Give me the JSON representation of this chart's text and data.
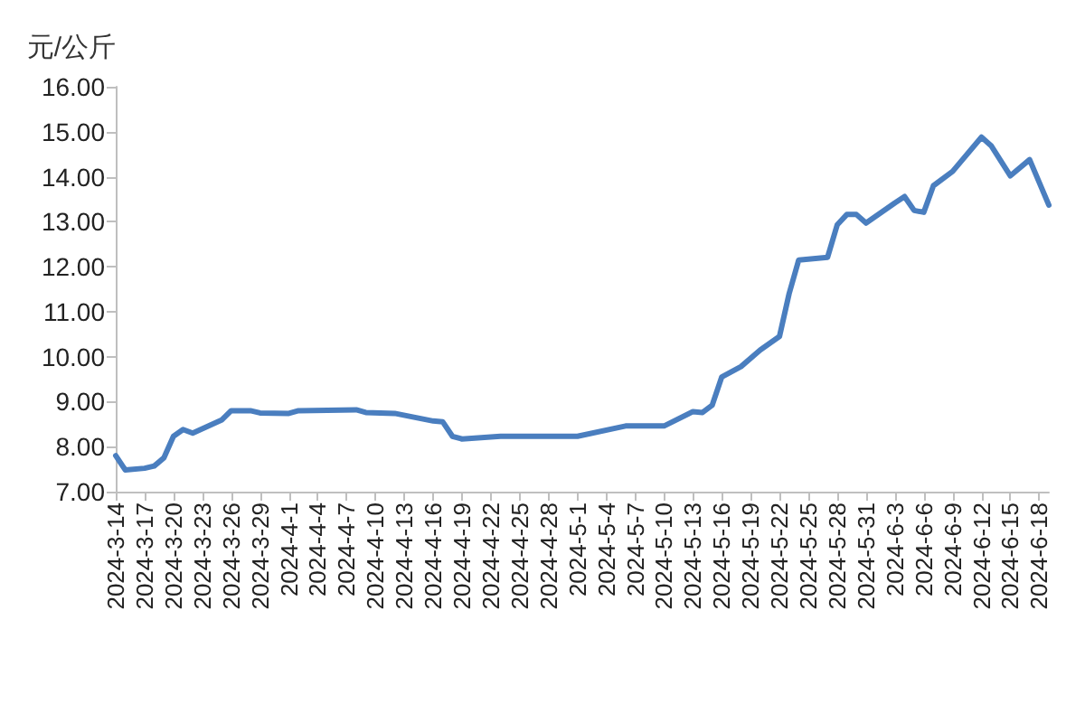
{
  "chart_data": {
    "type": "line",
    "ylabel": "元/公斤",
    "x": [
      "2024-03-14",
      "2024-03-15",
      "2024-03-17",
      "2024-03-18",
      "2024-03-19",
      "2024-03-20",
      "2024-03-21",
      "2024-03-22",
      "2024-03-25",
      "2024-03-26",
      "2024-03-28",
      "2024-03-29",
      "2024-04-01",
      "2024-04-02",
      "2024-04-08",
      "2024-04-09",
      "2024-04-12",
      "2024-04-16",
      "2024-04-17",
      "2024-04-18",
      "2024-04-19",
      "2024-04-23",
      "2024-05-01",
      "2024-05-06",
      "2024-05-10",
      "2024-05-13",
      "2024-05-14",
      "2024-05-15",
      "2024-05-16",
      "2024-05-18",
      "2024-05-20",
      "2024-05-22",
      "2024-05-23",
      "2024-05-24",
      "2024-05-27",
      "2024-05-28",
      "2024-05-29",
      "2024-05-30",
      "2024-05-31",
      "2024-06-03",
      "2024-06-04",
      "2024-06-05",
      "2024-06-06",
      "2024-06-07",
      "2024-06-09",
      "2024-06-12",
      "2024-06-13",
      "2024-06-15",
      "2024-06-17",
      "2024-06-19"
    ],
    "series": [
      {
        "color": "#4a7ebf",
        "values": [
          7.8,
          7.48,
          7.52,
          7.57,
          7.75,
          8.23,
          8.38,
          8.3,
          8.59,
          8.8,
          8.8,
          8.75,
          8.74,
          8.8,
          8.82,
          8.76,
          8.74,
          8.57,
          8.55,
          8.23,
          8.17,
          8.23,
          8.23,
          8.46,
          8.46,
          8.78,
          8.76,
          8.92,
          9.55,
          9.78,
          10.15,
          10.45,
          11.4,
          12.15,
          12.21,
          12.93,
          13.16,
          13.16,
          12.97,
          13.42,
          13.56,
          13.25,
          13.21,
          13.8,
          14.12,
          14.88,
          14.69,
          14.02,
          14.38,
          13.37
        ]
      }
    ],
    "xlim": [
      "2024-03-14",
      "2024-06-19"
    ],
    "xticks": [
      {
        "value": "2024-03-14",
        "label": "2024-3-14"
      },
      {
        "value": "2024-03-17",
        "label": "2024-3-17"
      },
      {
        "value": "2024-03-20",
        "label": "2024-3-20"
      },
      {
        "value": "2024-03-23",
        "label": "2024-3-23"
      },
      {
        "value": "2024-03-26",
        "label": "2024-3-26"
      },
      {
        "value": "2024-03-29",
        "label": "2024-3-29"
      },
      {
        "value": "2024-04-01",
        "label": "2024-4-1"
      },
      {
        "value": "2024-04-04",
        "label": "2024-4-4"
      },
      {
        "value": "2024-04-07",
        "label": "2024-4-7"
      },
      {
        "value": "2024-04-10",
        "label": "2024-4-10"
      },
      {
        "value": "2024-04-13",
        "label": "2024-4-13"
      },
      {
        "value": "2024-04-16",
        "label": "2024-4-16"
      },
      {
        "value": "2024-04-19",
        "label": "2024-4-19"
      },
      {
        "value": "2024-04-22",
        "label": "2024-4-22"
      },
      {
        "value": "2024-04-25",
        "label": "2024-4-25"
      },
      {
        "value": "2024-04-28",
        "label": "2024-4-28"
      },
      {
        "value": "2024-05-01",
        "label": "2024-5-1"
      },
      {
        "value": "2024-05-04",
        "label": "2024-5-4"
      },
      {
        "value": "2024-05-07",
        "label": "2024-5-7"
      },
      {
        "value": "2024-05-10",
        "label": "2024-5-10"
      },
      {
        "value": "2024-05-13",
        "label": "2024-5-13"
      },
      {
        "value": "2024-05-16",
        "label": "2024-5-16"
      },
      {
        "value": "2024-05-19",
        "label": "2024-5-19"
      },
      {
        "value": "2024-05-22",
        "label": "2024-5-22"
      },
      {
        "value": "2024-05-25",
        "label": "2024-5-25"
      },
      {
        "value": "2024-05-28",
        "label": "2024-5-28"
      },
      {
        "value": "2024-05-31",
        "label": "2024-5-31"
      },
      {
        "value": "2024-06-03",
        "label": "2024-6-3"
      },
      {
        "value": "2024-06-06",
        "label": "2024-6-6"
      },
      {
        "value": "2024-06-09",
        "label": "2024-6-9"
      },
      {
        "value": "2024-06-12",
        "label": "2024-6-12"
      },
      {
        "value": "2024-06-15",
        "label": "2024-6-15"
      },
      {
        "value": "2024-06-18",
        "label": "2024-6-18"
      }
    ],
    "ylim": [
      7,
      16
    ],
    "yticks": [
      {
        "value": 7,
        "label": "7.00"
      },
      {
        "value": 8,
        "label": "8.00"
      },
      {
        "value": 9,
        "label": "9.00"
      },
      {
        "value": 10,
        "label": "10.00"
      },
      {
        "value": 11,
        "label": "11.00"
      },
      {
        "value": 12,
        "label": "12.00"
      },
      {
        "value": 13,
        "label": "13.00"
      },
      {
        "value": 14,
        "label": "14.00"
      },
      {
        "value": 15,
        "label": "15.00"
      },
      {
        "value": 16,
        "label": "16.00"
      }
    ],
    "grid": false,
    "marker": "none",
    "line_style": "solid"
  }
}
